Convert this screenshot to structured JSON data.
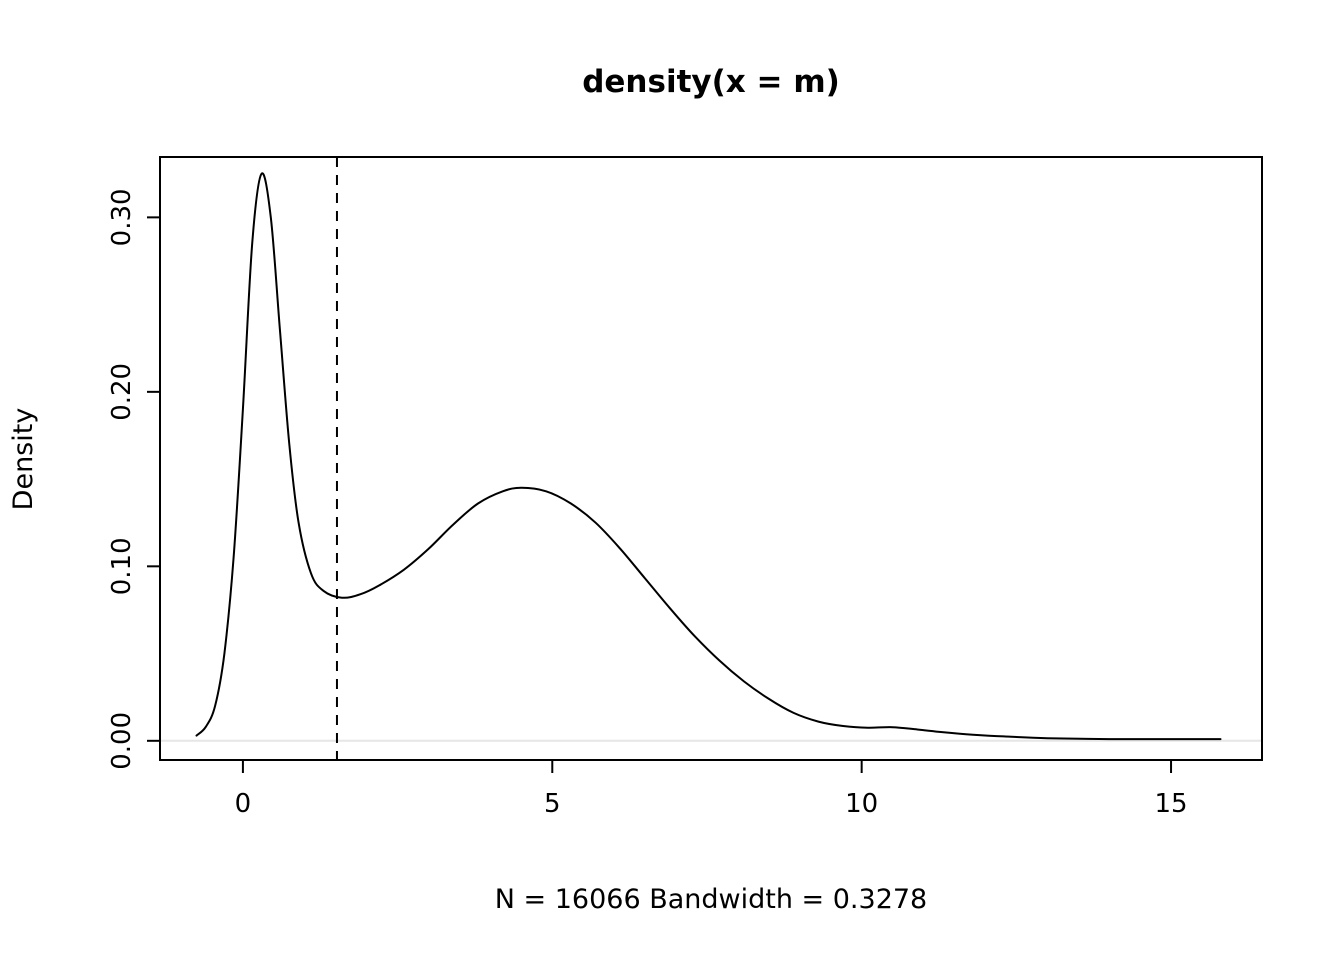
{
  "figure": {
    "title": "density(x = m)",
    "xlabel": "N = 16066   Bandwidth = 0.3278",
    "ylabel": "Density"
  },
  "chart_data": {
    "type": "line",
    "title": "density(x = m)",
    "xlabel": "N = 16066   Bandwidth = 0.3278",
    "ylabel": "Density",
    "n": 16066,
    "bandwidth": 0.3278,
    "xlim": [
      -1.34,
      16.47
    ],
    "ylim": [
      -0.011,
      0.3346
    ],
    "x_ticks": [
      0,
      5,
      10,
      15
    ],
    "x_tick_labels": [
      "0",
      "5",
      "10",
      "15"
    ],
    "y_ticks": [
      0.0,
      0.1,
      0.2,
      0.3
    ],
    "y_tick_labels": [
      "0.00",
      "0.10",
      "0.20",
      "0.30"
    ],
    "grid": false,
    "legend": "none",
    "line_color": "#000000",
    "vline": {
      "x": 1.52,
      "style": "dashed",
      "color": "#000000"
    },
    "baseline": {
      "y": 0.0,
      "color": "#e6e6e6"
    },
    "series": [
      {
        "name": "density",
        "x": [
          -0.75,
          -0.6,
          -0.45,
          -0.3,
          -0.15,
          0.0,
          0.15,
          0.3,
          0.45,
          0.6,
          0.75,
          0.9,
          1.1,
          1.3,
          1.6,
          1.9,
          2.2,
          2.6,
          3.0,
          3.4,
          3.8,
          4.2,
          4.5,
          4.9,
          5.3,
          5.7,
          6.1,
          6.5,
          6.9,
          7.3,
          7.7,
          8.1,
          8.5,
          8.9,
          9.3,
          9.7,
          10.1,
          10.5,
          10.9,
          11.3,
          11.8,
          12.3,
          13.0,
          14.0,
          15.0,
          15.8
        ],
        "y": [
          0.003,
          0.008,
          0.02,
          0.05,
          0.105,
          0.19,
          0.285,
          0.325,
          0.3,
          0.235,
          0.17,
          0.125,
          0.096,
          0.086,
          0.082,
          0.084,
          0.089,
          0.098,
          0.11,
          0.124,
          0.136,
          0.143,
          0.145,
          0.143,
          0.136,
          0.125,
          0.11,
          0.093,
          0.076,
          0.06,
          0.046,
          0.034,
          0.024,
          0.016,
          0.011,
          0.0085,
          0.0075,
          0.0078,
          0.0065,
          0.005,
          0.0035,
          0.0025,
          0.0015,
          0.001,
          0.001,
          0.001
        ]
      }
    ]
  }
}
